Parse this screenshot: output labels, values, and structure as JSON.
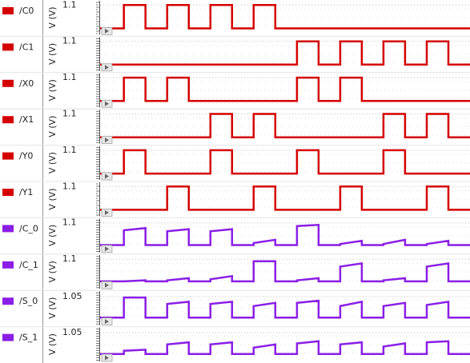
{
  "chart_data": [
    {
      "type": "line",
      "legend": "/C0",
      "y_label": "V (V)",
      "color": "#d40000",
      "xlim": [
        -0.1,
        17
      ],
      "ylim": [
        -0.3,
        1.3
      ],
      "yticks": [
        1.1
      ],
      "x": [
        -0.1,
        1,
        1,
        2,
        2,
        3,
        3,
        4,
        4,
        5,
        5,
        6,
        6,
        7,
        7,
        8,
        8,
        17
      ],
      "values": [
        0,
        0,
        1.1,
        1.1,
        0,
        0,
        1.1,
        1.1,
        0,
        0,
        1.1,
        1.1,
        0,
        0,
        1.1,
        1.1,
        0,
        0
      ]
    },
    {
      "type": "line",
      "legend": "/C1",
      "y_label": "V (V)",
      "color": "#d40000",
      "xlim": [
        -0.1,
        17
      ],
      "ylim": [
        -0.3,
        1.3
      ],
      "yticks": [
        1.1
      ],
      "x": [
        -0.1,
        9,
        9,
        10,
        10,
        11,
        11,
        12,
        12,
        13,
        13,
        14,
        14,
        15,
        15,
        16,
        16,
        17
      ],
      "values": [
        0,
        0,
        1.1,
        1.1,
        0,
        0,
        1.1,
        1.1,
        0,
        0,
        1.1,
        1.1,
        0,
        0,
        1.1,
        1.1,
        0,
        0
      ]
    },
    {
      "type": "line",
      "legend": "/X0",
      "y_label": "V (V)",
      "color": "#d40000",
      "xlim": [
        -0.1,
        17
      ],
      "ylim": [
        -0.3,
        1.3
      ],
      "yticks": [
        1.1
      ],
      "x": [
        -0.1,
        1,
        1,
        2,
        2,
        3,
        3,
        4,
        4,
        9,
        9,
        10,
        10,
        11,
        11,
        12,
        12,
        17
      ],
      "values": [
        0,
        0,
        1.1,
        1.1,
        0,
        0,
        1.1,
        1.1,
        0,
        0,
        1.1,
        1.1,
        0,
        0,
        1.1,
        1.1,
        0,
        0
      ]
    },
    {
      "type": "line",
      "legend": "/X1",
      "y_label": "V (V)",
      "color": "#d40000",
      "xlim": [
        -0.1,
        17
      ],
      "ylim": [
        -0.3,
        1.3
      ],
      "yticks": [
        1.1
      ],
      "x": [
        -0.1,
        5,
        5,
        6,
        6,
        7,
        7,
        8,
        8,
        13,
        13,
        14,
        14,
        15,
        15,
        16,
        16,
        17
      ],
      "values": [
        0,
        0,
        1.1,
        1.1,
        0,
        0,
        1.1,
        1.1,
        0,
        0,
        1.1,
        1.1,
        0,
        0,
        1.1,
        1.1,
        0,
        0
      ]
    },
    {
      "type": "line",
      "legend": "/Y0",
      "y_label": "V (V)",
      "color": "#d40000",
      "xlim": [
        -0.1,
        17
      ],
      "ylim": [
        -0.3,
        1.3
      ],
      "yticks": [
        1.1
      ],
      "x": [
        -0.1,
        1,
        1,
        2,
        2,
        5,
        5,
        6,
        6,
        9,
        9,
        10,
        10,
        13,
        13,
        14,
        14,
        17
      ],
      "values": [
        0,
        0,
        1.1,
        1.1,
        0,
        0,
        1.1,
        1.1,
        0,
        0,
        1.1,
        1.1,
        0,
        0,
        1.1,
        1.1,
        0,
        0
      ]
    },
    {
      "type": "line",
      "legend": "/Y1",
      "y_label": "V (V)",
      "color": "#d40000",
      "xlim": [
        -0.1,
        17
      ],
      "ylim": [
        -0.3,
        1.3
      ],
      "yticks": [
        1.1
      ],
      "x": [
        -0.1,
        3,
        3,
        4,
        4,
        7,
        7,
        8,
        8,
        11,
        11,
        12,
        12,
        15,
        15,
        16,
        16,
        17
      ],
      "values": [
        0,
        0,
        1.1,
        1.1,
        0,
        0,
        1.1,
        1.1,
        0,
        0,
        1.1,
        1.1,
        0,
        0,
        1.1,
        1.1,
        0,
        0
      ]
    },
    {
      "type": "line",
      "legend": "/C_0",
      "y_label": "V (V)",
      "color": "#8a1ee6",
      "xlim": [
        -0.1,
        17
      ],
      "ylim": [
        -0.3,
        1.3
      ],
      "yticks": [
        1.1
      ],
      "x": [
        -0.1,
        1,
        1,
        2,
        2,
        3,
        3,
        4,
        4,
        5,
        5,
        6,
        6,
        7,
        7,
        8,
        8,
        9,
        9,
        10,
        10,
        11,
        11,
        12,
        12,
        13,
        13,
        14,
        14,
        15,
        15,
        16,
        16,
        17
      ],
      "values": [
        0.05,
        0.05,
        0.75,
        0.85,
        0.05,
        0.05,
        0.7,
        0.8,
        0.05,
        0.05,
        0.7,
        0.8,
        0.05,
        0.05,
        0.15,
        0.3,
        0.05,
        0.05,
        0.95,
        1.0,
        0.05,
        0.05,
        0.1,
        0.25,
        0.05,
        0.05,
        0.1,
        0.3,
        0.05,
        0.05,
        0.1,
        0.25,
        0.05,
        0.05
      ]
    },
    {
      "type": "line",
      "legend": "/C_1",
      "y_label": "V (V)",
      "color": "#8a1ee6",
      "xlim": [
        -0.1,
        17
      ],
      "ylim": [
        -0.3,
        1.3
      ],
      "yticks": [
        1.1
      ],
      "x": [
        -0.1,
        1,
        1,
        2,
        2,
        3,
        3,
        4,
        4,
        5,
        5,
        6,
        6,
        7,
        7,
        8,
        8,
        9,
        9,
        10,
        10,
        11,
        11,
        12,
        12,
        13,
        13,
        14,
        14,
        15,
        15,
        16,
        16,
        17
      ],
      "values": [
        0.05,
        0.05,
        0.05,
        0.1,
        0.05,
        0.05,
        0.1,
        0.2,
        0.05,
        0.05,
        0.15,
        0.3,
        0.05,
        0.05,
        1.0,
        1.0,
        0.05,
        0.05,
        0.1,
        0.2,
        0.05,
        0.05,
        0.75,
        0.9,
        0.05,
        0.05,
        0.1,
        0.2,
        0.05,
        0.05,
        0.75,
        0.9,
        0.05,
        0.05
      ]
    },
    {
      "type": "line",
      "legend": "/S_0",
      "y_label": "V (V)",
      "color": "#8a1ee6",
      "xlim": [
        -0.1,
        17
      ],
      "ylim": [
        -0.3,
        1.3
      ],
      "yticks": [
        1.05
      ],
      "x": [
        -0.1,
        1,
        1,
        2,
        2,
        3,
        3,
        4,
        4,
        5,
        5,
        6,
        6,
        7,
        7,
        8,
        8,
        9,
        9,
        10,
        10,
        11,
        11,
        12,
        12,
        13,
        13,
        14,
        14,
        15,
        15,
        16,
        16,
        17
      ],
      "values": [
        0.05,
        0.05,
        1.0,
        1.0,
        0.05,
        0.05,
        0.7,
        0.8,
        0.05,
        0.05,
        0.7,
        0.8,
        0.05,
        0.05,
        0.6,
        0.75,
        0.05,
        0.05,
        0.75,
        0.85,
        0.05,
        0.05,
        0.6,
        0.8,
        0.05,
        0.05,
        0.6,
        0.75,
        0.05,
        0.05,
        0.65,
        0.8,
        0.05,
        0.05
      ]
    },
    {
      "type": "line",
      "legend": "/S_1",
      "y_label": "V (V)",
      "color": "#8a1ee6",
      "xlim": [
        -0.1,
        17
      ],
      "ylim": [
        -0.3,
        1.3
      ],
      "yticks": [
        1.05
      ],
      "x": [
        -0.1,
        1,
        1,
        2,
        2,
        3,
        3,
        4,
        4,
        5,
        5,
        6,
        6,
        7,
        7,
        8,
        8,
        9,
        9,
        10,
        10,
        11,
        11,
        12,
        12,
        13,
        13,
        14,
        14,
        15,
        15,
        16,
        16,
        17
      ],
      "values": [
        0.05,
        0.05,
        0.2,
        0.25,
        0.05,
        0.05,
        0.5,
        0.6,
        0.05,
        0.05,
        0.5,
        0.6,
        0.05,
        0.05,
        0.35,
        0.5,
        0.05,
        0.05,
        0.55,
        0.65,
        0.05,
        0.05,
        0.5,
        0.6,
        0.05,
        0.05,
        0.4,
        0.55,
        0.05,
        0.05,
        0.6,
        0.65,
        0.05,
        0.05
      ]
    }
  ]
}
